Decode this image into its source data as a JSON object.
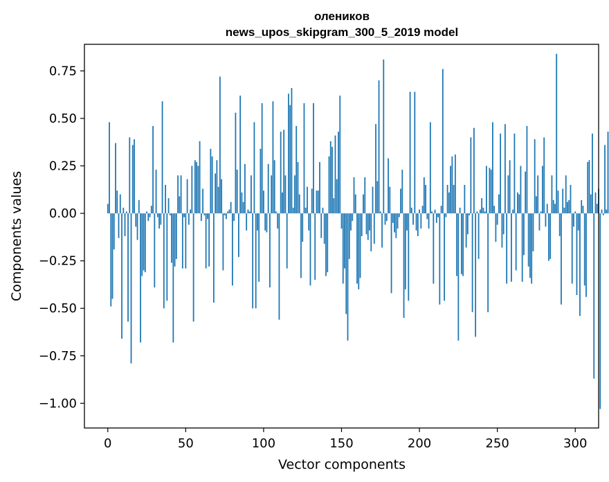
{
  "chart_data": {
    "type": "bar",
    "title_line1": "оленикoв",
    "title_line2": "news_upos_skipgram_300_5_2019 model",
    "xlabel": "Vector components",
    "ylabel": "Components values",
    "xlim": [
      -15,
      315
    ],
    "ylim": [
      -1.13,
      0.89
    ],
    "xticks": [
      0,
      50,
      100,
      150,
      200,
      250,
      300
    ],
    "xtick_labels": [
      "0",
      "50",
      "100",
      "150",
      "200",
      "250",
      "300"
    ],
    "yticks": [
      0.75,
      0.5,
      0.25,
      0.0,
      -0.25,
      -0.5,
      -0.75,
      -1.0
    ],
    "ytick_labels": [
      "0.75",
      "0.50",
      "0.25",
      "0.00",
      "−0.25",
      "−0.50",
      "−0.75",
      "−1.00"
    ],
    "bar_color": "#1f77b4",
    "values": [
      0.05,
      0.48,
      -0.49,
      -0.45,
      -0.19,
      0.37,
      0.12,
      -0.13,
      0.1,
      -0.66,
      0.03,
      -0.12,
      0.01,
      -0.57,
      0.4,
      -0.79,
      0.36,
      0.39,
      -0.07,
      -0.14,
      0.07,
      -0.68,
      -0.33,
      -0.3,
      -0.31,
      0.01,
      -0.04,
      -0.02,
      0.04,
      0.46,
      -0.39,
      0.23,
      -0.02,
      -0.08,
      -0.06,
      0.59,
      -0.5,
      0.15,
      -0.46,
      0.08,
      -0.01,
      -0.26,
      -0.68,
      -0.28,
      -0.24,
      0.2,
      0.09,
      0.2,
      -0.29,
      -0.02,
      -0.29,
      0.18,
      -0.06,
      0.02,
      0.25,
      -0.57,
      0.28,
      0.27,
      0.25,
      0.38,
      -0.04,
      0.13,
      -0.01,
      -0.29,
      -0.03,
      -0.28,
      0.34,
      0.3,
      -0.47,
      0.21,
      0.28,
      0.14,
      0.72,
      0.18,
      -0.3,
      -0.01,
      -0.03,
      0.01,
      0.02,
      0.06,
      -0.38,
      -0.04,
      0.53,
      0.23,
      -0.23,
      0.62,
      0.11,
      0.06,
      0.26,
      -0.09,
      0.02,
      0.01,
      0.2,
      -0.5,
      0.48,
      -0.5,
      -0.09,
      -0.36,
      0.34,
      0.58,
      0.12,
      -0.09,
      -0.1,
      0.26,
      -0.39,
      0.2,
      0.59,
      0.28,
      0.01,
      -0.08,
      -0.56,
      0.43,
      0.11,
      0.44,
      0.2,
      -0.29,
      0.63,
      0.57,
      0.66,
      0.03,
      0.2,
      0.46,
      0.27,
      0.1,
      -0.34,
      -0.15,
      0.58,
      0.03,
      0.14,
      -0.09,
      -0.38,
      0.13,
      0.58,
      -0.35,
      0.12,
      0.12,
      0.27,
      -0.13,
      0.03,
      -0.16,
      -0.33,
      -0.31,
      0.3,
      0.38,
      0.35,
      0.08,
      0.41,
      0.18,
      0.43,
      0.62,
      -0.08,
      -0.37,
      -0.29,
      -0.53,
      -0.67,
      -0.24,
      -0.09,
      -0.04,
      0.19,
      0.1,
      -0.37,
      -0.4,
      -0.34,
      -0.12,
      0.1,
      0.19,
      -0.11,
      -0.14,
      -0.09,
      -0.2,
      0.14,
      -0.16,
      0.47,
      0.17,
      0.7,
      0.01,
      -0.18,
      0.81,
      -0.06,
      -0.04,
      0.29,
      0.14,
      -0.42,
      -0.05,
      -0.1,
      -0.13,
      -0.08,
      -0.02,
      0.13,
      0.23,
      -0.55,
      -0.4,
      -0.09,
      -0.46,
      0.64,
      0.03,
      -0.06,
      0.64,
      -0.09,
      -0.12,
      0.02,
      -0.08,
      0.04,
      0.19,
      0.15,
      -0.03,
      -0.08,
      0.48,
      0.01,
      -0.37,
      0.02,
      -0.05,
      -0.02,
      -0.48,
      0.04,
      0.76,
      -0.46,
      -0.02,
      0.15,
      0.11,
      0.25,
      0.3,
      0.15,
      0.31,
      -0.33,
      -0.67,
      0.03,
      -0.32,
      -0.33,
      0.15,
      -0.18,
      -0.11,
      -0.01,
      0.4,
      -0.52,
      0.45,
      -0.65,
      0.01,
      -0.24,
      0.02,
      0.08,
      0.03,
      0.01,
      0.25,
      -0.52,
      0.24,
      0.23,
      0.48,
      0.04,
      -0.15,
      -0.06,
      0.1,
      0.42,
      -0.18,
      -0.11,
      0.47,
      -0.37,
      0.2,
      0.28,
      -0.36,
      0.02,
      0.42,
      -0.3,
      0.11,
      0.1,
      0.25,
      -0.36,
      -0.22,
      0.22,
      0.46,
      -0.28,
      -0.34,
      -0.37,
      -0.2,
      0.39,
      0.09,
      0.2,
      -0.09,
      0.01,
      0.25,
      0.4,
      -0.07,
      0.05,
      -0.25,
      -0.24,
      0.2,
      0.07,
      0.05,
      0.84,
      0.12,
      -0.12,
      -0.48,
      0.13,
      0.03,
      0.2,
      0.06,
      0.07,
      0.15,
      -0.37,
      -0.07,
      0.01,
      -0.43,
      -0.09,
      -0.54,
      0.07,
      0.04,
      -0.38,
      -0.44,
      0.27,
      0.28,
      0.1,
      0.42,
      -0.87,
      0.11,
      0.05,
      0.13,
      -1.03,
      0.02,
      -0.01,
      0.36,
      0.02,
      0.43
    ]
  }
}
